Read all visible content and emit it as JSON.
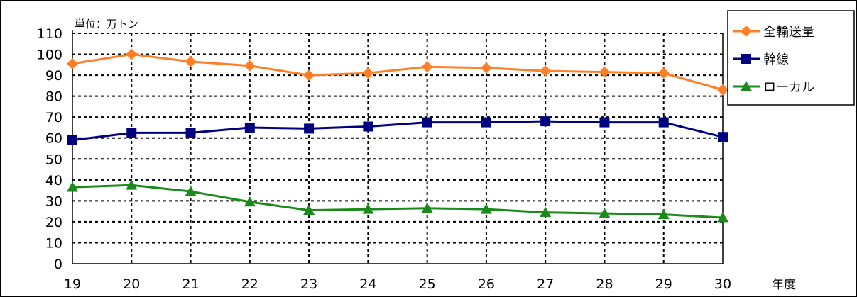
{
  "chart_data": {
    "type": "line",
    "unit_note": "単位：万トン",
    "xlabel": "年度",
    "ylabel": "",
    "categories": [
      "19",
      "20",
      "21",
      "22",
      "23",
      "24",
      "25",
      "26",
      "27",
      "28",
      "29",
      "30"
    ],
    "yticks": [
      "0",
      "10",
      "20",
      "30",
      "40",
      "50",
      "60",
      "70",
      "80",
      "90",
      "100",
      "110"
    ],
    "ylim": [
      0,
      110
    ],
    "grid": true,
    "legend_position": "top-right",
    "series": [
      {
        "name": "全輸送量",
        "color": "#ff7f27",
        "marker": "diamond",
        "values": [
          95.5,
          100,
          96.5,
          94.5,
          90,
          91,
          94,
          93.5,
          92,
          91.5,
          91,
          83
        ]
      },
      {
        "name": "幹線",
        "color": "#000080",
        "marker": "square",
        "values": [
          59,
          62.5,
          62.5,
          65,
          64.5,
          65.5,
          67.5,
          67.5,
          68,
          67.5,
          67.5,
          60.5
        ]
      },
      {
        "name": "ローカル",
        "color": "#1a8a1a",
        "marker": "triangle",
        "values": [
          36.5,
          37.5,
          34.5,
          29.5,
          25.5,
          26,
          26.5,
          26,
          24.5,
          24,
          23.5,
          22
        ]
      }
    ]
  }
}
